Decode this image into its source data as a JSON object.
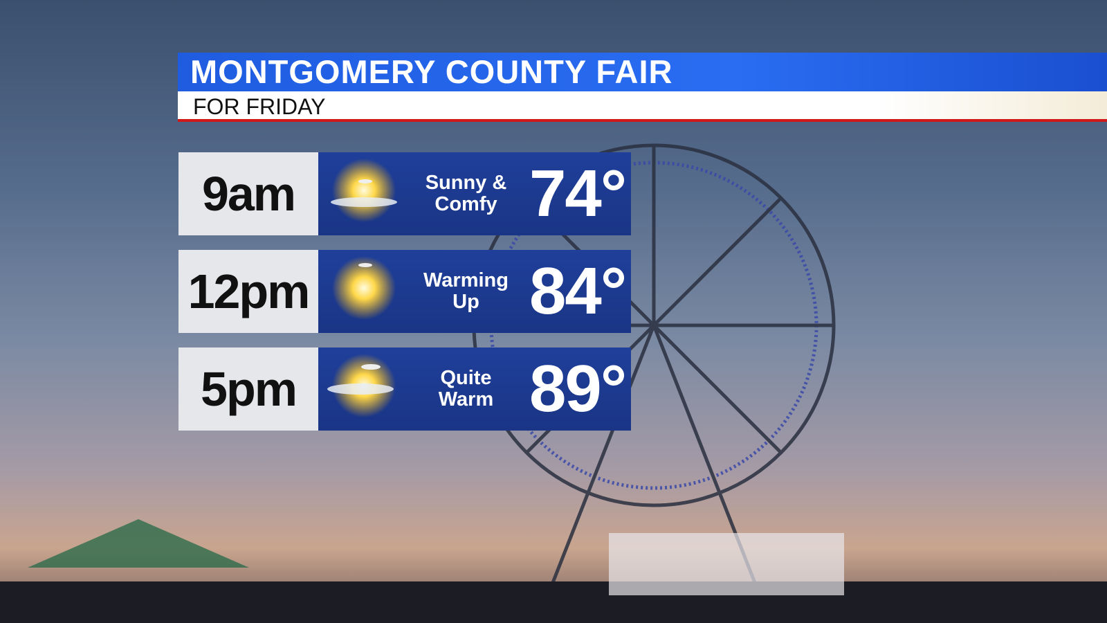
{
  "header": {
    "title": "MONTGOMERY COUNTY FAIR",
    "subtitle": "FOR FRIDAY"
  },
  "forecast": [
    {
      "time": "9am",
      "condition_line1": "Sunny &",
      "condition_line2": "Comfy",
      "temperature": "74°",
      "icon": "sun-with-cloud-icon"
    },
    {
      "time": "12pm",
      "condition_line1": "Warming",
      "condition_line2": "Up",
      "temperature": "84°",
      "icon": "sun-icon"
    },
    {
      "time": "5pm",
      "condition_line1": "Quite",
      "condition_line2": "Warm",
      "temperature": "89°",
      "icon": "sun-with-cloud-icon"
    }
  ],
  "colors": {
    "banner_blue": "#2a6df2",
    "panel_blue": "#1f3f9a",
    "accent_red": "#d01818"
  }
}
